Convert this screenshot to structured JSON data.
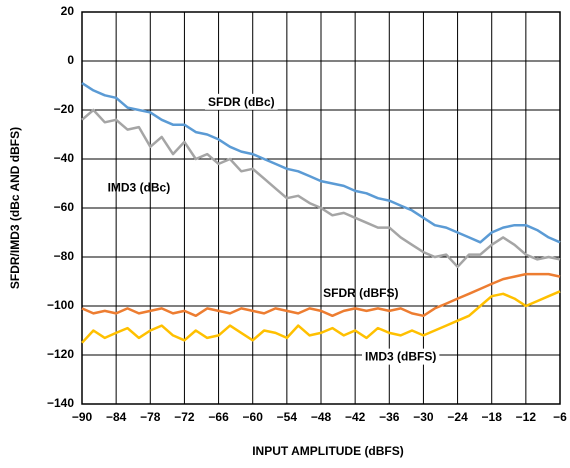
{
  "chart_data": {
    "type": "line",
    "xlabel": "INPUT AMPLITUDE (dBFS)",
    "ylabel": "SFDR/IMD3 (dBc AND dBFS)",
    "x": [
      -90,
      -88,
      -86,
      -84,
      -82,
      -80,
      -78,
      -76,
      -74,
      -72,
      -70,
      -68,
      -66,
      -64,
      -62,
      -60,
      -58,
      -56,
      -54,
      -52,
      -50,
      -48,
      -46,
      -44,
      -42,
      -40,
      -38,
      -36,
      -34,
      -32,
      -30,
      -28,
      -26,
      -24,
      -22,
      -20,
      -18,
      -16,
      -14,
      -12,
      -10,
      -8,
      -6
    ],
    "series": [
      {
        "name": "SFDR (dBc)",
        "color": "#5b9bd5",
        "values": [
          -9,
          -12,
          -14,
          -15,
          -19,
          -20,
          -21,
          -24,
          -26,
          -26,
          -29,
          -30,
          -32,
          -35,
          -37,
          -38,
          -40,
          -42,
          -44,
          -45,
          -47,
          -49,
          -50,
          -51,
          -53,
          -54,
          -56,
          -57,
          -59,
          -61,
          -64,
          -67,
          -68,
          -70,
          -72,
          -74,
          -70,
          -68,
          -67,
          -67,
          -69,
          -72,
          -74
        ]
      },
      {
        "name": "IMD3 (dBc)",
        "color": "#a5a5a5",
        "values": [
          -24,
          -20,
          -25,
          -24,
          -28,
          -27,
          -35,
          -31,
          -38,
          -33,
          -40,
          -38,
          -42,
          -40,
          -45,
          -44,
          -48,
          -52,
          -56,
          -55,
          -58,
          -60,
          -63,
          -62,
          -64,
          -66,
          -68,
          -68,
          -72,
          -75,
          -78,
          -80,
          -79,
          -84,
          -79,
          -79,
          -75,
          -72,
          -75,
          -79,
          -81,
          -80,
          -81
        ]
      },
      {
        "name": "SFDR (dBFS)",
        "color": "#ed7d31",
        "values": [
          -101,
          -103,
          -102,
          -103,
          -101,
          -103,
          -102,
          -101,
          -103,
          -102,
          -104,
          -101,
          -102,
          -103,
          -101,
          -102,
          -103,
          -101,
          -102,
          -103,
          -101,
          -102,
          -104,
          -102,
          -101,
          -102,
          -101,
          -102,
          -101,
          -103,
          -104,
          -101,
          -99,
          -97,
          -95,
          -93,
          -91,
          -89,
          -88,
          -87,
          -87,
          -87,
          -88
        ]
      },
      {
        "name": "IMD3 (dBFS)",
        "color": "#ffc000",
        "values": [
          -115,
          -110,
          -113,
          -111,
          -109,
          -113,
          -110,
          -108,
          -112,
          -114,
          -110,
          -113,
          -112,
          -108,
          -111,
          -114,
          -110,
          -111,
          -113,
          -108,
          -112,
          -111,
          -109,
          -112,
          -110,
          -113,
          -109,
          -111,
          -112,
          -110,
          -112,
          -110,
          -108,
          -106,
          -104,
          -100,
          -96,
          -95,
          -97,
          -100,
          -98,
          -96,
          -94
        ]
      }
    ],
    "xlim": [
      -90,
      -6
    ],
    "xticks": [
      {
        "value": -90,
        "label": "−90"
      },
      {
        "value": -84,
        "label": "−84"
      },
      {
        "value": -78,
        "label": "−78"
      },
      {
        "value": -72,
        "label": "−72"
      },
      {
        "value": -66,
        "label": "−66"
      },
      {
        "value": -60,
        "label": "−60"
      },
      {
        "value": -54,
        "label": "−54"
      },
      {
        "value": -48,
        "label": "−48"
      },
      {
        "value": -42,
        "label": "−42"
      },
      {
        "value": -36,
        "label": "−36"
      },
      {
        "value": -30,
        "label": "−30"
      },
      {
        "value": -24,
        "label": "−24"
      },
      {
        "value": -18,
        "label": "−18"
      },
      {
        "value": -12,
        "label": "−12"
      },
      {
        "value": -6,
        "label": "−6"
      }
    ],
    "ylim": [
      -140,
      20
    ],
    "yticks": [
      {
        "value": -140,
        "label": "−140"
      },
      {
        "value": -120,
        "label": "−120"
      },
      {
        "value": -100,
        "label": "−100"
      },
      {
        "value": -80,
        "label": "−80"
      },
      {
        "value": -60,
        "label": "−60"
      },
      {
        "value": -40,
        "label": "−40"
      },
      {
        "value": -20,
        "label": "−20"
      },
      0,
      20
    ],
    "grid": true
  }
}
